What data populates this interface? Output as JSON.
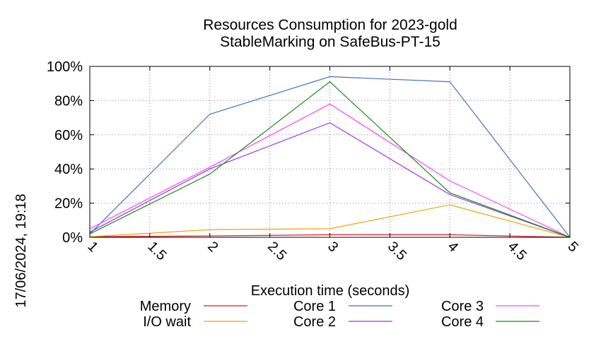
{
  "chart_data": {
    "type": "line",
    "title_line1": "Resources Consumption for 2023-gold",
    "title_line2": "StableMarking on SafeBus-PT-15",
    "xlabel": "Execution time (seconds)",
    "ylabel": "",
    "side_timestamp": "17/06/2024, 19:18",
    "xlim": [
      1,
      5
    ],
    "ylim": [
      0,
      100
    ],
    "x_ticks": [
      "1",
      "1.5",
      "2",
      "2.5",
      "3",
      "3.5",
      "4",
      "4.5",
      "5"
    ],
    "y_ticks": [
      "0%",
      "20%",
      "40%",
      "60%",
      "80%",
      "100%"
    ],
    "grid": true,
    "legend_position": "bottom",
    "x": [
      1,
      2,
      3,
      4,
      5
    ],
    "series": [
      {
        "name": "Memory",
        "color": "#e0191e",
        "values": [
          0.3,
          0.8,
          1.5,
          1.5,
          0
        ]
      },
      {
        "name": "I/O wait",
        "color": "#f0a30a",
        "values": [
          0.3,
          4.5,
          5,
          19,
          0
        ]
      },
      {
        "name": "Core 1",
        "color": "#4472c4",
        "values": [
          2,
          72,
          94,
          91,
          0
        ]
      },
      {
        "name": "Core 2",
        "color": "#9933ee",
        "values": [
          3,
          40,
          67,
          25,
          0
        ]
      },
      {
        "name": "Core 3",
        "color": "#ff44ff",
        "values": [
          5,
          41,
          78,
          33,
          0
        ]
      },
      {
        "name": "Core 4",
        "color": "#1d8a1d",
        "values": [
          2,
          37,
          91,
          26,
          0
        ]
      }
    ]
  }
}
